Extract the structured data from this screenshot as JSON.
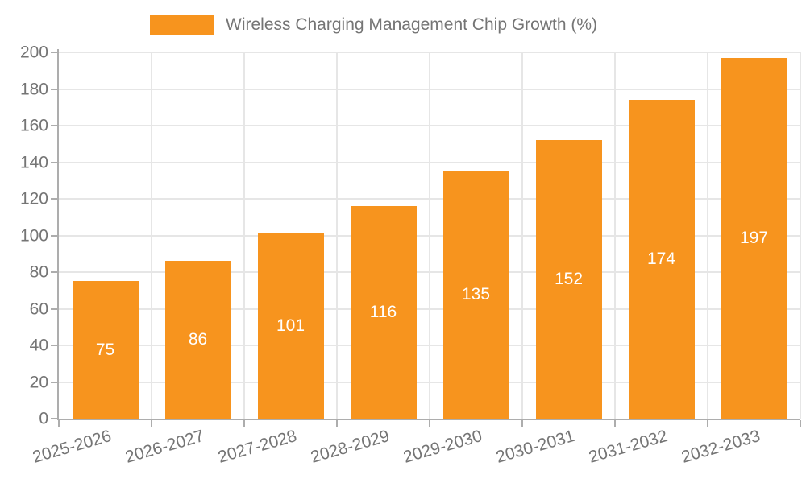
{
  "chart_data": {
    "type": "bar",
    "title": "Wireless Charging Management Chip Growth (%)",
    "categories": [
      "2025-2026",
      "2026-2027",
      "2027-2028",
      "2028-2029",
      "2029-2030",
      "2030-2031",
      "2031-2032",
      "2032-2033"
    ],
    "values": [
      75,
      86,
      101,
      116,
      135,
      152,
      174,
      197
    ],
    "xlabel": "",
    "ylabel": "",
    "ylim": [
      0,
      200
    ],
    "ytick_step": 20,
    "grid": true,
    "legend_position": "top",
    "bar_color": "#f7941e",
    "value_label_color": "#ffffff",
    "axis_text_color": "#757575",
    "grid_color": "#e6e6e6",
    "axis_line_color": "#adadad"
  }
}
